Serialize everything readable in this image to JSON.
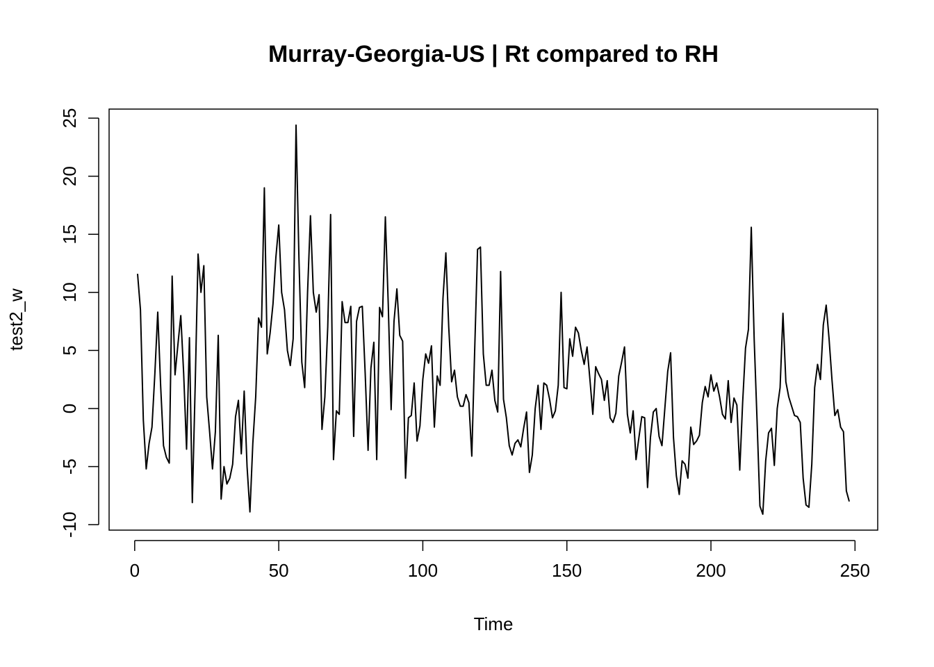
{
  "chart_data": {
    "type": "line",
    "title": "Murray-Georgia-US | Rt compared to RH",
    "xlabel": "Time",
    "ylabel": "test2_w",
    "color": "#000000",
    "x": [
      1,
      2,
      3,
      4,
      5,
      6,
      7,
      8,
      9,
      10,
      11,
      12,
      13,
      14,
      15,
      16,
      17,
      18,
      19,
      20,
      21,
      22,
      23,
      24,
      25,
      26,
      27,
      28,
      29,
      30,
      31,
      32,
      33,
      34,
      35,
      36,
      37,
      38,
      39,
      40,
      41,
      42,
      43,
      44,
      45,
      46,
      47,
      48,
      49,
      50,
      51,
      52,
      53,
      54,
      55,
      56,
      57,
      58,
      59,
      60,
      61,
      62,
      63,
      64,
      65,
      66,
      67,
      68,
      69,
      70,
      71,
      72,
      73,
      74,
      75,
      76,
      77,
      78,
      79,
      80,
      81,
      82,
      83,
      84,
      85,
      86,
      87,
      88,
      89,
      90,
      91,
      92,
      93,
      94,
      95,
      96,
      97,
      98,
      99,
      100,
      101,
      102,
      103,
      104,
      105,
      106,
      107,
      108,
      109,
      110,
      111,
      112,
      113,
      114,
      115,
      116,
      117,
      118,
      119,
      120,
      121,
      122,
      123,
      124,
      125,
      126,
      127,
      128,
      129,
      130,
      131,
      132,
      133,
      134,
      135,
      136,
      137,
      138,
      139,
      140,
      141,
      142,
      143,
      144,
      145,
      146,
      147,
      148,
      149,
      150,
      151,
      152,
      153,
      154,
      155,
      156,
      157,
      158,
      159,
      160,
      161,
      162,
      163,
      164,
      165,
      166,
      167,
      168,
      169,
      170,
      171,
      172,
      173,
      174,
      175,
      176,
      177,
      178,
      179,
      180,
      181,
      182,
      183,
      184,
      185,
      186,
      187,
      188,
      189,
      190,
      191,
      192,
      193,
      194,
      195,
      196,
      197,
      198,
      199,
      200,
      201,
      202,
      203,
      204,
      205,
      206,
      207,
      208,
      209,
      210,
      211,
      212,
      213,
      214,
      215,
      216,
      217,
      218,
      219,
      220,
      221,
      222,
      223,
      224,
      225,
      226,
      227,
      228,
      229,
      230,
      231,
      232,
      233,
      234,
      235,
      236,
      237,
      238,
      239,
      240,
      241,
      242,
      243,
      244,
      245,
      246,
      247,
      248
    ],
    "values": [
      11.6,
      8.5,
      -1,
      -5.2,
      -3,
      -1.6,
      3,
      8.3,
      2,
      -3.2,
      -4.2,
      -4.7,
      11.4,
      2.9,
      5.5,
      8,
      3,
      -3.5,
      6.1,
      -8.1,
      2,
      13.3,
      10,
      12.3,
      1,
      -2,
      -5.2,
      -2,
      6.3,
      -7.8,
      -5,
      -6.5,
      -6,
      -4.8,
      -0.7,
      0.7,
      -3.9,
      1.5,
      -5,
      -8.9,
      -3,
      1,
      7.8,
      7,
      19,
      4.7,
      6.5,
      9,
      13,
      15.8,
      10,
      8.5,
      5,
      3.7,
      6,
      24.4,
      13,
      4,
      1.8,
      10,
      16.6,
      10,
      8.3,
      9.8,
      -1.8,
      1,
      7,
      16.7,
      -4.4,
      -0.2,
      -0.5,
      9.2,
      7.4,
      7.4,
      8.8,
      -2.4,
      7.5,
      8.7,
      8.8,
      3,
      -3.6,
      3.5,
      5.7,
      -4.4,
      8.7,
      7.9,
      16.5,
      9,
      -0.1,
      7.5,
      10.3,
      6.3,
      5.8,
      -6,
      -0.8,
      -0.6,
      2.2,
      -2.8,
      -1.5,
      2.5,
      4.7,
      3.9,
      5.4,
      -1.6,
      2.8,
      2,
      9.5,
      13.4,
      7,
      2.3,
      3.3,
      1,
      0.2,
      0.2,
      1.2,
      0.5,
      -4.1,
      5,
      13.7,
      13.9,
      4.7,
      2,
      2,
      3.3,
      0.7,
      -0.3,
      11.8,
      0.8,
      -0.8,
      -3.2,
      -4,
      -3,
      -2.7,
      -3.3,
      -1.7,
      -0.3,
      -5.5,
      -4,
      0,
      2,
      -1.8,
      2.2,
      2,
      0.8,
      -0.8,
      -0.2,
      2,
      10,
      1.8,
      1.7,
      6,
      4.5,
      7,
      6.5,
      5,
      3.8,
      5.3,
      2.5,
      -0.5,
      3.6,
      3,
      2.5,
      0.7,
      2.4,
      -0.8,
      -1.2,
      -0.4,
      2.8,
      4,
      5.3,
      -0.5,
      -2.1,
      -0.2,
      -4.4,
      -2.5,
      -0.7,
      -0.8,
      -6.8,
      -2.5,
      -0.3,
      0,
      -2.4,
      -3.2,
      0,
      3.2,
      4.8,
      -2.5,
      -5.8,
      -7.4,
      -4.5,
      -4.8,
      -6,
      -1.6,
      -3.1,
      -2.8,
      -2.3,
      0.5,
      1.9,
      1,
      2.9,
      1.5,
      2.2,
      1,
      -0.5,
      -0.9,
      2.4,
      -1.2,
      0.9,
      0.3,
      -5.3,
      0.5,
      5.2,
      6.8,
      15.6,
      6,
      -1,
      -8.4,
      -9.1,
      -4.5,
      -2.1,
      -1.7,
      -4.9,
      0,
      1.8,
      8.2,
      2.3,
      1,
      0.2,
      -0.6,
      -0.7,
      -1.2,
      -6,
      -8.3,
      -8.5,
      -4.8,
      1.8,
      3.8,
      2.5,
      7.2,
      8.9,
      6,
      2.5,
      -0.6,
      -0.1,
      -1.6,
      -2,
      -7.1,
      -8
    ],
    "xlim": [
      -8.88,
      257.88
    ],
    "ylim": [
      -10.47,
      25.78
    ],
    "xticks": [
      0,
      50,
      100,
      150,
      200,
      250
    ],
    "yticks": [
      -10,
      -5,
      0,
      5,
      10,
      15,
      20,
      25
    ]
  }
}
